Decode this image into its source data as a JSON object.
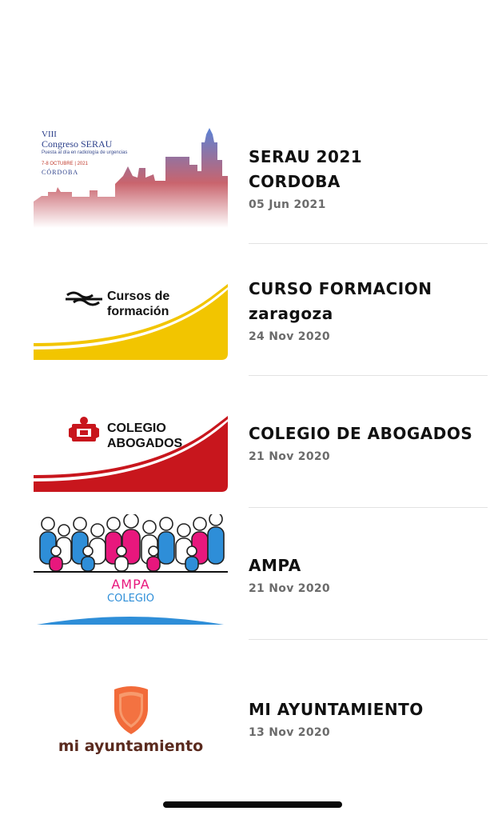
{
  "items": [
    {
      "title_line1": "SERAU 2021",
      "title_line2": "CORDOBA",
      "date": "05 Jun 2021",
      "thumb": {
        "l1": "VIII",
        "l2": "Congreso SERAU",
        "l3": "Puesta al día en radiología de urgencias",
        "l4": "7-8 OCTUBRE | 2021",
        "l5": "CÓRDOBA"
      }
    },
    {
      "title_line1": "CURSO FORMACION",
      "title_line2": "zaragoza",
      "date": "24 Nov 2020",
      "thumb": {
        "l1": "Cursos de",
        "l2": "formación",
        "accent": "#f2c500"
      }
    },
    {
      "title_line1": "COLEGIO DE ABOGADOS",
      "date": "21 Nov 2020",
      "thumb": {
        "l1": "COLEGIO",
        "l2": "ABOGADOS",
        "accent": "#c8161d"
      }
    },
    {
      "title_line1": "AMPA",
      "date": "21 Nov 2020",
      "thumb": {
        "l1": "AMPA",
        "l2": "COLEGIO"
      }
    },
    {
      "title_line1": "MI AYUNTAMIENTO",
      "date": "13 Nov 2020",
      "thumb": {
        "l1": "mi ayuntamiento",
        "accent": "#f26b3a"
      }
    }
  ]
}
